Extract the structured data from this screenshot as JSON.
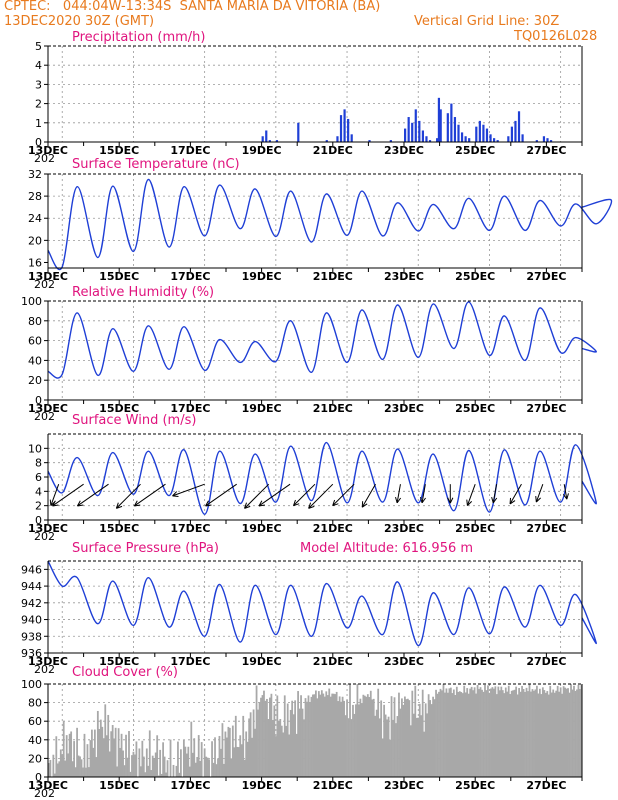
{
  "header": {
    "line1": "CPTEC:   044:04W-13:34S  SANTA MARIA DA VITORIA (BA)",
    "line2_left": "13DEC2020 30Z (GMT)",
    "line2_right": "Vertical Grid Line: 30Z",
    "line3_right": "TQ0126L028"
  },
  "colors": {
    "header": "#e87a1e",
    "title": "#e0147e",
    "series": "#1f3fd6",
    "cloud": "#a8a8a8",
    "grid": "#999999"
  },
  "x_axis": {
    "tick_labels": [
      "13DEC",
      "15DEC",
      "17DEC",
      "19DEC",
      "21DEC",
      "23DEC",
      "25DEC",
      "27DEC"
    ],
    "tick_days": [
      0,
      2,
      4,
      6,
      8,
      10,
      12,
      14
    ],
    "year_label": "202",
    "range_days": [
      0,
      15
    ]
  },
  "chart_data": [
    {
      "type": "bar",
      "title": "Precipitation (mm/h)",
      "ylim": [
        0,
        5
      ],
      "yticks": [
        0,
        1,
        2,
        3,
        4,
        5
      ],
      "x": [
        6.0,
        6.1,
        6.2,
        6.4,
        7.0,
        7.8,
        8.1,
        8.2,
        8.3,
        8.4,
        8.5,
        9.0,
        9.6,
        10.0,
        10.1,
        10.2,
        10.3,
        10.4,
        10.5,
        10.6,
        10.7,
        10.9,
        10.95,
        11.0,
        11.2,
        11.3,
        11.4,
        11.5,
        11.6,
        11.7,
        11.8,
        12.0,
        12.1,
        12.2,
        12.3,
        12.4,
        12.5,
        12.6,
        12.9,
        13.0,
        13.1,
        13.2,
        13.3,
        13.7,
        13.9,
        14.0,
        14.1
      ],
      "values": [
        0.3,
        0.6,
        0.1,
        0.1,
        1.0,
        0.1,
        0.3,
        1.4,
        1.7,
        1.2,
        0.4,
        0.1,
        0.1,
        0.7,
        1.3,
        1.0,
        1.7,
        1.1,
        0.6,
        0.3,
        0.1,
        0.2,
        2.3,
        1.7,
        1.5,
        2.0,
        1.3,
        0.9,
        0.5,
        0.3,
        0.2,
        0.8,
        1.1,
        0.9,
        0.7,
        0.4,
        0.2,
        0.1,
        0.3,
        0.8,
        1.1,
        1.6,
        0.4,
        0.1,
        0.3,
        0.2,
        0.1
      ]
    },
    {
      "type": "line",
      "title": "Surface Temperature (nC)",
      "ylim": [
        15,
        32
      ],
      "yticks": [
        16,
        20,
        24,
        28,
        32
      ],
      "minima": [
        15.2,
        16.9,
        18.0,
        18.8,
        20.8,
        22.1,
        20.7,
        19.7,
        20.9,
        20.8,
        21.7,
        22.1,
        21.8,
        21.8,
        22.6,
        23.0
      ],
      "maxima": [
        null,
        29.7,
        29.8,
        31.0,
        29.7,
        30.0,
        29.3,
        28.9,
        28.4,
        28.9,
        26.8,
        26.5,
        27.6,
        28.0,
        27.2,
        26.6,
        27.3
      ]
    },
    {
      "type": "line",
      "title": "Relative Humidity (%)",
      "ylim": [
        0,
        100
      ],
      "yticks": [
        0,
        20,
        40,
        60,
        80,
        100
      ],
      "minima": [
        26,
        25,
        29,
        31,
        30,
        38,
        39,
        28,
        38,
        41,
        43,
        52,
        45,
        40,
        48,
        49
      ],
      "maxima": [
        null,
        88,
        72,
        75,
        74,
        61,
        59,
        80,
        88,
        91,
        96,
        97,
        99,
        85,
        93,
        63
      ]
    },
    {
      "type": "line",
      "title": "Surface Wind (m/s)",
      "ylim": [
        0,
        12
      ],
      "yticks": [
        0,
        2,
        4,
        6,
        8,
        10
      ],
      "minima": [
        3.8,
        3.4,
        3.6,
        3.4,
        0.8,
        2.3,
        2.5,
        2.7,
        2.4,
        2.5,
        2.4,
        1.3,
        1.1,
        2.1,
        2.5,
        2.4
      ],
      "maxima": [
        null,
        8.7,
        9.4,
        9.6,
        9.8,
        9.6,
        9.2,
        10.3,
        10.8,
        9.6,
        9.9,
        9.2,
        9.7,
        9.8,
        9.6,
        10.5
      ],
      "vectors_x": [
        0.3,
        1.0,
        1.7,
        2.6,
        3.3,
        4.4,
        5.3,
        6.2,
        6.8,
        7.5,
        8.0,
        8.6,
        9.2,
        9.9,
        10.6,
        11.3,
        12.0,
        12.6,
        13.3,
        13.9,
        14.5
      ],
      "vectors_dir": [
        200,
        235,
        235,
        225,
        235,
        250,
        235,
        225,
        235,
        225,
        225,
        225,
        210,
        190,
        190,
        180,
        200,
        190,
        210,
        200,
        170
      ],
      "vectors_len": [
        0.6,
        1.0,
        1.0,
        0.9,
        1.0,
        0.9,
        1.0,
        0.9,
        1.0,
        0.8,
        0.9,
        0.8,
        0.7,
        0.5,
        0.5,
        0.5,
        0.6,
        0.5,
        0.6,
        0.5,
        0.4
      ]
    },
    {
      "type": "line",
      "title": "Surface Pressure (hPa)",
      "annotation": "Model Altitude: 616.956 m",
      "ylim": [
        936,
        947
      ],
      "yticks": [
        936,
        938,
        940,
        942,
        944,
        946
      ],
      "minima": [
        944.0,
        939.5,
        939.3,
        939.1,
        938.0,
        937.3,
        938.2,
        938.0,
        939.0,
        938.2,
        936.9,
        938.2,
        938.3,
        939.1,
        939.3,
        937.2
      ],
      "maxima": [
        945.8,
        945.0,
        944.6,
        945.0,
        943.4,
        944.2,
        944.1,
        944.1,
        944.3,
        942.8,
        944.5,
        943.2,
        943.8,
        943.9,
        944.1,
        943.0
      ]
    },
    {
      "type": "bar",
      "title": "Cloud Cover (%)",
      "ylim": [
        0,
        100
      ],
      "yticks": [
        0,
        20,
        40,
        60,
        80,
        100
      ],
      "x": [
        0.0,
        0.5,
        1.0,
        1.5,
        2.0,
        2.5,
        3.0,
        3.5,
        4.0,
        4.5,
        5.0,
        5.5,
        6.0,
        6.5,
        7.0,
        7.5,
        8.0,
        8.5,
        9.0,
        9.5,
        10.0,
        10.5,
        11.0,
        11.5,
        12.0,
        12.5,
        13.0,
        13.5,
        14.0,
        14.5,
        15.0
      ],
      "values": [
        5,
        40,
        20,
        60,
        35,
        20,
        25,
        10,
        35,
        15,
        45,
        40,
        90,
        60,
        75,
        90,
        90,
        75,
        90,
        60,
        85,
        70,
        95,
        92,
        95,
        95,
        93,
        95,
        92,
        95,
        96
      ]
    }
  ]
}
